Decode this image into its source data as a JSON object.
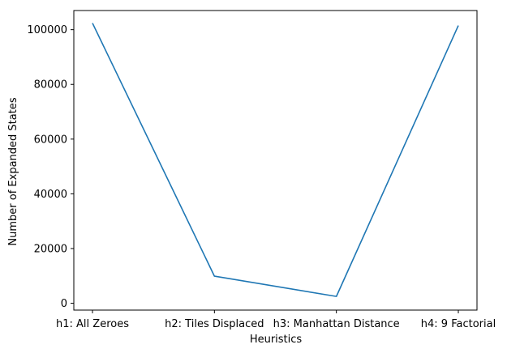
{
  "chart_data": {
    "type": "line",
    "title": "",
    "xlabel": "Heuristics",
    "ylabel": "Number of Expanded States",
    "categories": [
      "h1: All Zeroes",
      "h2: Tiles Displaced",
      "h3: Manhattan Distance",
      "h4: 9 Factorial"
    ],
    "series": [
      {
        "values": [
          102400,
          9900,
          2500,
          101500
        ]
      }
    ],
    "ylim": [
      -2500,
      107000
    ],
    "yticks": [
      0,
      20000,
      40000,
      60000,
      80000,
      100000
    ],
    "ytick_labels": [
      "0",
      "20000",
      "40000",
      "60000",
      "80000",
      "100000"
    ],
    "grid": false,
    "legend": "none",
    "colors": {
      "line": "#1f77b4",
      "axis": "#000000"
    }
  }
}
